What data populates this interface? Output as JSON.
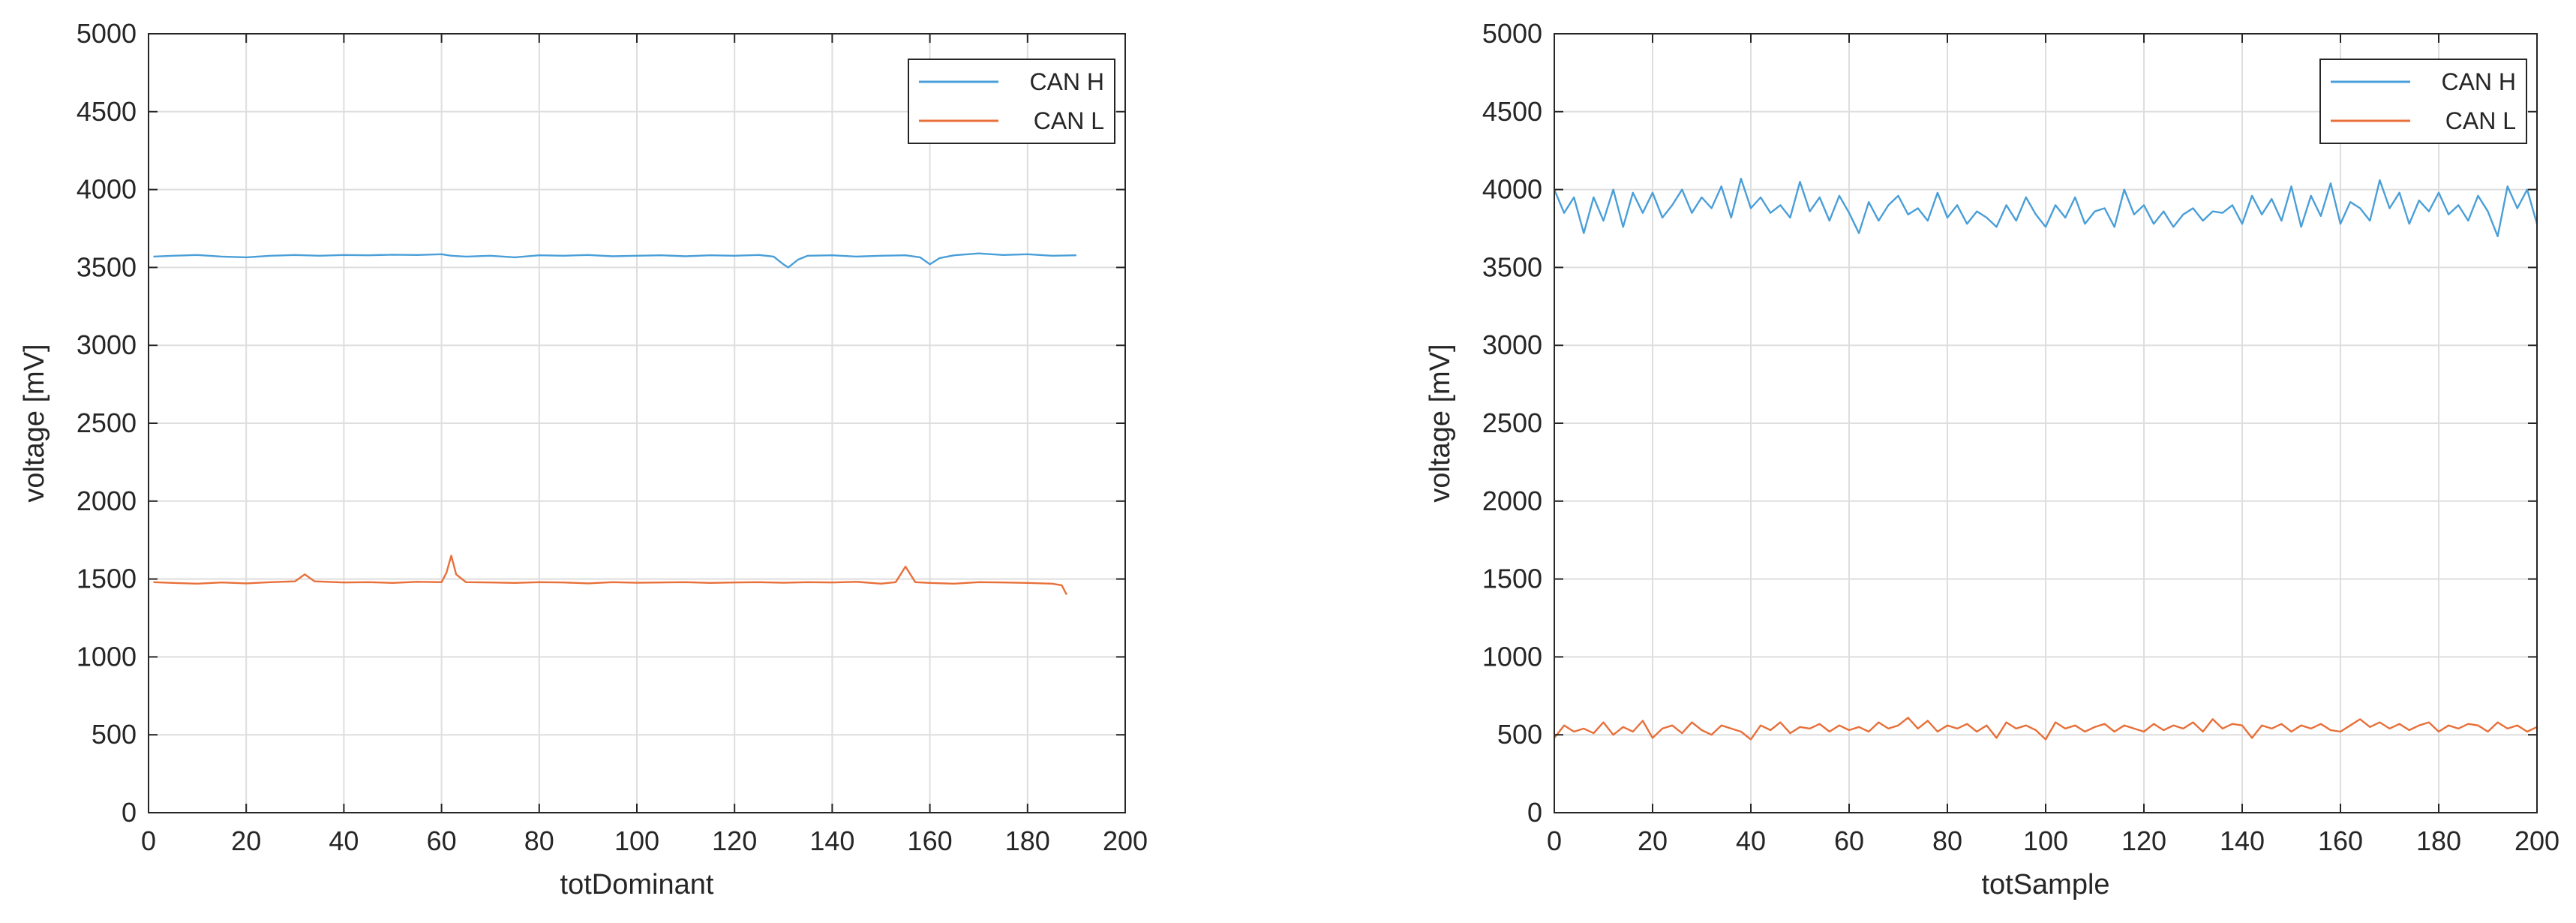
{
  "colors": {
    "can_h": "#4a9fd8",
    "can_l": "#e8703a",
    "grid": "#dedede",
    "axis": "#262626"
  },
  "chart_data": [
    {
      "type": "line",
      "xlabel": "totDominant",
      "ylabel": "voltage [mV]",
      "xlim": [
        0,
        200
      ],
      "ylim": [
        0,
        5000
      ],
      "xticks": [
        0,
        20,
        40,
        60,
        80,
        100,
        120,
        140,
        160,
        180,
        200
      ],
      "yticks": [
        0,
        500,
        1000,
        1500,
        2000,
        2500,
        3000,
        3500,
        4000,
        4500,
        5000
      ],
      "grid": true,
      "legend": "top-right",
      "series": [
        {
          "name": "CAN H",
          "color": "#4a9fd8",
          "x": [
            1,
            5,
            10,
            15,
            20,
            25,
            30,
            35,
            40,
            45,
            50,
            55,
            60,
            62,
            65,
            70,
            75,
            80,
            85,
            90,
            95,
            100,
            105,
            110,
            115,
            120,
            125,
            128,
            130,
            131,
            133,
            135,
            140,
            145,
            150,
            155,
            158,
            160,
            162,
            165,
            170,
            175,
            180,
            185,
            190
          ],
          "y": [
            3570,
            3575,
            3580,
            3570,
            3565,
            3575,
            3580,
            3575,
            3580,
            3578,
            3582,
            3580,
            3585,
            3575,
            3570,
            3575,
            3565,
            3578,
            3575,
            3580,
            3572,
            3575,
            3578,
            3572,
            3578,
            3575,
            3580,
            3570,
            3520,
            3500,
            3550,
            3575,
            3578,
            3570,
            3575,
            3578,
            3565,
            3520,
            3560,
            3578,
            3590,
            3580,
            3585,
            3575,
            3578
          ]
        },
        {
          "name": "CAN L",
          "color": "#e8703a",
          "x": [
            1,
            5,
            10,
            15,
            20,
            25,
            30,
            32,
            34,
            40,
            45,
            50,
            55,
            60,
            61,
            62,
            63,
            65,
            70,
            75,
            80,
            85,
            90,
            95,
            100,
            105,
            110,
            115,
            120,
            125,
            130,
            135,
            140,
            145,
            150,
            153,
            155,
            157,
            160,
            165,
            170,
            175,
            180,
            185,
            187,
            188
          ],
          "y": [
            1480,
            1475,
            1470,
            1478,
            1472,
            1480,
            1485,
            1530,
            1485,
            1478,
            1480,
            1475,
            1482,
            1480,
            1540,
            1650,
            1530,
            1480,
            1478,
            1475,
            1480,
            1478,
            1472,
            1480,
            1476,
            1478,
            1480,
            1475,
            1478,
            1480,
            1476,
            1480,
            1478,
            1482,
            1470,
            1480,
            1580,
            1480,
            1475,
            1470,
            1480,
            1478,
            1475,
            1470,
            1460,
            1400
          ]
        }
      ]
    },
    {
      "type": "line",
      "xlabel": "totSample",
      "ylabel": "voltage [mV]",
      "xlim": [
        0,
        200
      ],
      "ylim": [
        0,
        5000
      ],
      "xticks": [
        0,
        20,
        40,
        60,
        80,
        100,
        120,
        140,
        160,
        180,
        200
      ],
      "yticks": [
        0,
        500,
        1000,
        1500,
        2000,
        2500,
        3000,
        3500,
        4000,
        4500,
        5000
      ],
      "grid": true,
      "legend": "top-right",
      "series": [
        {
          "name": "CAN H",
          "color": "#4a9fd8",
          "x": [
            0,
            2,
            4,
            6,
            8,
            10,
            12,
            14,
            16,
            18,
            20,
            22,
            24,
            26,
            28,
            30,
            32,
            34,
            36,
            38,
            40,
            42,
            44,
            46,
            48,
            50,
            52,
            54,
            56,
            58,
            60,
            62,
            64,
            66,
            68,
            70,
            72,
            74,
            76,
            78,
            80,
            82,
            84,
            86,
            88,
            90,
            92,
            94,
            96,
            98,
            100,
            102,
            104,
            106,
            108,
            110,
            112,
            114,
            116,
            118,
            120,
            122,
            124,
            126,
            128,
            130,
            132,
            134,
            136,
            138,
            140,
            142,
            144,
            146,
            148,
            150,
            152,
            154,
            156,
            158,
            160,
            162,
            164,
            166,
            168,
            170,
            172,
            174,
            176,
            178,
            180,
            182,
            184,
            186,
            188,
            190,
            192,
            194,
            196,
            198,
            200
          ],
          "y": [
            4000,
            3850,
            3950,
            3720,
            3950,
            3800,
            4000,
            3760,
            3980,
            3850,
            3980,
            3820,
            3900,
            4000,
            3850,
            3950,
            3880,
            4020,
            3820,
            4070,
            3880,
            3950,
            3850,
            3900,
            3820,
            4050,
            3860,
            3950,
            3800,
            3960,
            3850,
            3720,
            3920,
            3800,
            3900,
            3960,
            3840,
            3880,
            3800,
            3980,
            3820,
            3900,
            3780,
            3860,
            3820,
            3760,
            3900,
            3800,
            3950,
            3840,
            3760,
            3900,
            3820,
            3950,
            3780,
            3860,
            3880,
            3760,
            4000,
            3840,
            3900,
            3780,
            3860,
            3760,
            3840,
            3880,
            3800,
            3860,
            3850,
            3900,
            3780,
            3960,
            3840,
            3940,
            3800,
            4020,
            3760,
            3960,
            3830,
            4040,
            3780,
            3920,
            3880,
            3800,
            4060,
            3880,
            3980,
            3780,
            3930,
            3860,
            3980,
            3840,
            3900,
            3800,
            3960,
            3860,
            3700,
            4020,
            3880,
            4000,
            3780
          ]
        },
        {
          "name": "CAN L",
          "color": "#e8703a",
          "x": [
            0,
            2,
            4,
            6,
            8,
            10,
            12,
            14,
            16,
            18,
            20,
            22,
            24,
            26,
            28,
            30,
            32,
            34,
            36,
            38,
            40,
            42,
            44,
            46,
            48,
            50,
            52,
            54,
            56,
            58,
            60,
            62,
            64,
            66,
            68,
            70,
            72,
            74,
            76,
            78,
            80,
            82,
            84,
            86,
            88,
            90,
            92,
            94,
            96,
            98,
            100,
            102,
            104,
            106,
            108,
            110,
            112,
            114,
            116,
            118,
            120,
            122,
            124,
            126,
            128,
            130,
            132,
            134,
            136,
            138,
            140,
            142,
            144,
            146,
            148,
            150,
            152,
            154,
            156,
            158,
            160,
            162,
            164,
            166,
            168,
            170,
            172,
            174,
            176,
            178,
            180,
            182,
            184,
            186,
            188,
            190,
            192,
            194,
            196,
            198,
            200
          ],
          "y": [
            480,
            560,
            520,
            540,
            510,
            580,
            500,
            550,
            520,
            590,
            480,
            540,
            560,
            510,
            580,
            530,
            500,
            560,
            540,
            520,
            470,
            560,
            530,
            580,
            510,
            550,
            540,
            570,
            520,
            560,
            530,
            550,
            520,
            580,
            540,
            560,
            610,
            540,
            590,
            520,
            560,
            540,
            570,
            520,
            560,
            480,
            580,
            540,
            560,
            530,
            470,
            580,
            540,
            560,
            520,
            550,
            570,
            520,
            560,
            540,
            520,
            570,
            530,
            560,
            540,
            580,
            520,
            600,
            540,
            570,
            560,
            480,
            560,
            540,
            570,
            520,
            560,
            540,
            570,
            530,
            520,
            560,
            600,
            550,
            580,
            540,
            570,
            530,
            560,
            580,
            520,
            560,
            540,
            570,
            560,
            520,
            580,
            540,
            560,
            520,
            550
          ]
        }
      ]
    }
  ]
}
